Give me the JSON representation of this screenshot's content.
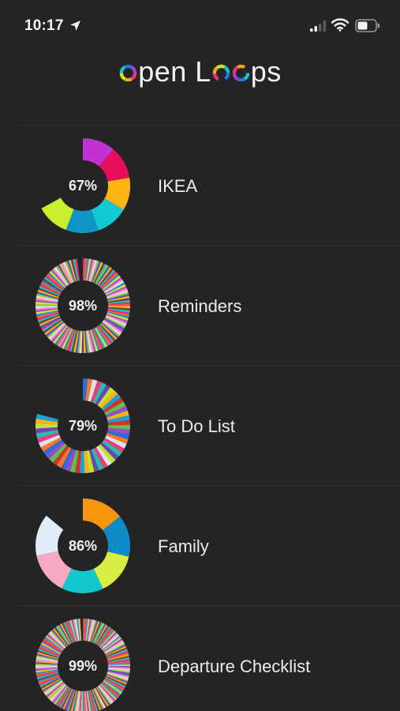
{
  "status_bar": {
    "time": "10:17"
  },
  "header": {
    "title_parts": [
      "pen L",
      "ps"
    ]
  },
  "loops": [
    {
      "name": "IKEA",
      "percent_label": "67%",
      "fraction": 0.67,
      "segments": 6,
      "palette": [
        "#c231d1",
        "#e60e5d",
        "#fbb511",
        "#12c9d2",
        "#1195c9",
        "#c7ef2f"
      ]
    },
    {
      "name": "Reminders",
      "percent_label": "98%",
      "fraction": 0.98,
      "segments": 140,
      "palette": [
        "#e0307a",
        "#8ec93f",
        "#2b8fd8",
        "#f4b323",
        "#9b57c9",
        "#19c4c0",
        "#e2e2e2",
        "#f2663a",
        "#4d55c7",
        "#d9e82b",
        "#7a3b2e",
        "#ff8cc6"
      ]
    },
    {
      "name": "To Do List",
      "percent_label": "79%",
      "fraction": 0.79,
      "segments": 48,
      "palette": [
        "#2e6bd8",
        "#f2b51e",
        "#e2e2e2",
        "#d13232",
        "#25c0a9",
        "#9b49c9",
        "#c6e030",
        "#f07a2b",
        "#1d9fd8",
        "#e63e88",
        "#57c44d",
        "#6b46b0"
      ]
    },
    {
      "name": "Family",
      "percent_label": "86%",
      "fraction": 0.86,
      "segments": 6,
      "palette": [
        "#f8950f",
        "#118ac9",
        "#d8ec45",
        "#11c9cc",
        "#f7a8c4",
        "#e1ecf8"
      ]
    },
    {
      "name": "Departure Checklist",
      "percent_label": "99%",
      "fraction": 0.99,
      "segments": 170,
      "palette": [
        "#d83a80",
        "#a7d23a",
        "#3592d8",
        "#f2a725",
        "#8f55c9",
        "#1cc7c0",
        "#dedede",
        "#ef5d35",
        "#5257c7",
        "#e1d52b",
        "#8a3a2f",
        "#ff96c8"
      ]
    }
  ]
}
